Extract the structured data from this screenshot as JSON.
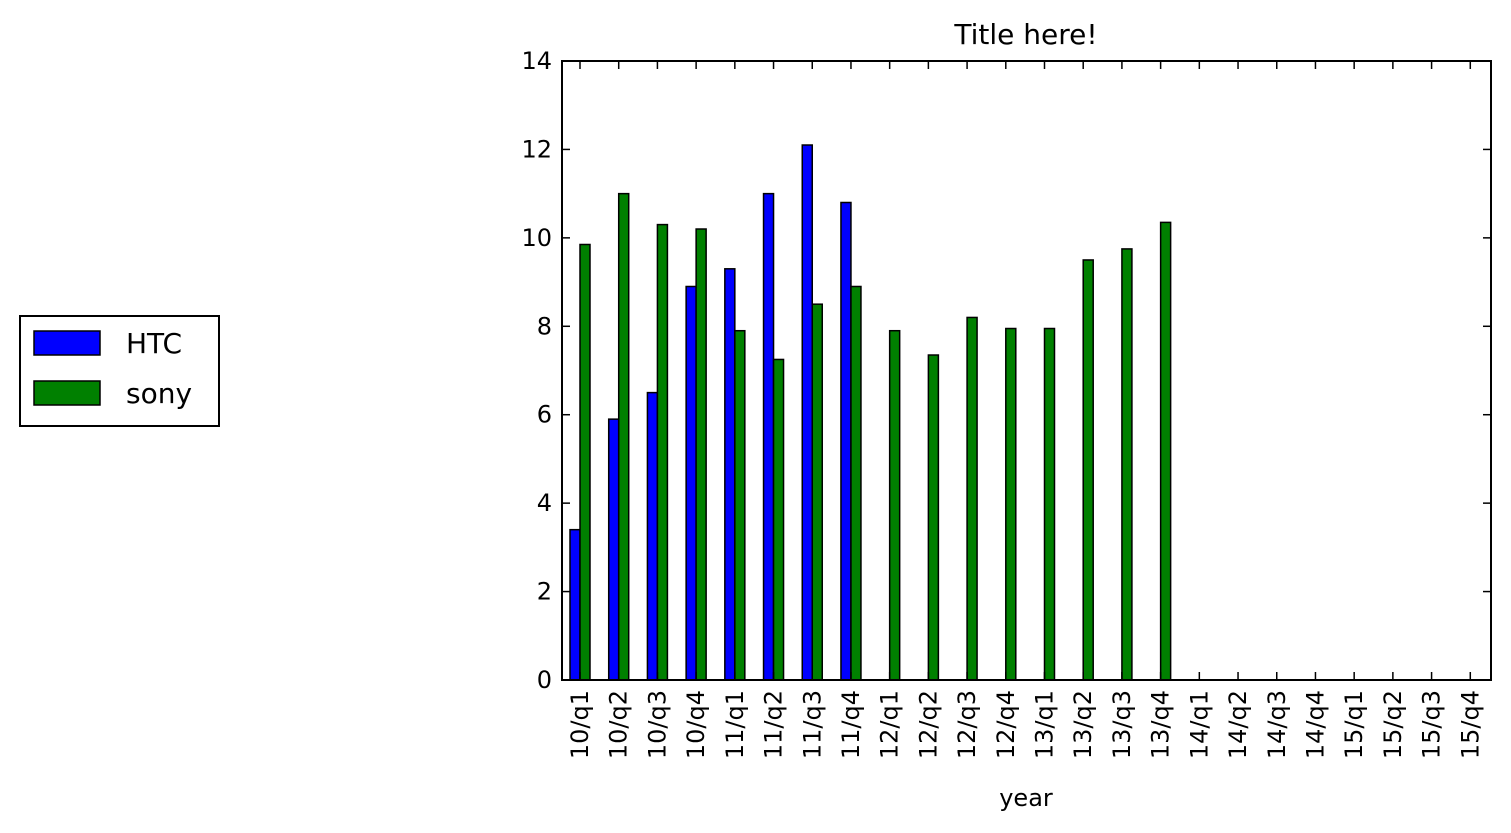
{
  "chart_data": {
    "type": "bar",
    "title": "Title here!",
    "xlabel": "year",
    "ylabel": "",
    "ylim": [
      0,
      14
    ],
    "yticks": [
      0,
      2,
      4,
      6,
      8,
      10,
      12,
      14
    ],
    "categories": [
      "10/q1",
      "10/q2",
      "10/q3",
      "10/q4",
      "11/q1",
      "11/q2",
      "11/q3",
      "11/q4",
      "12/q1",
      "12/q2",
      "12/q3",
      "12/q4",
      "13/q1",
      "13/q2",
      "13/q3",
      "13/q4",
      "14/q1",
      "14/q2",
      "14/q3",
      "14/q4",
      "15/q1",
      "15/q2",
      "15/q3",
      "15/q4"
    ],
    "series": [
      {
        "name": "HTC",
        "color": "#0000ff",
        "values": [
          3.4,
          5.9,
          6.5,
          8.9,
          9.3,
          11.0,
          12.1,
          10.8,
          null,
          null,
          null,
          null,
          null,
          null,
          null,
          null,
          null,
          null,
          null,
          null,
          null,
          null,
          null,
          null
        ]
      },
      {
        "name": "sony",
        "color": "#008000",
        "values": [
          9.85,
          11.0,
          10.3,
          10.2,
          7.9,
          7.25,
          8.5,
          8.9,
          7.9,
          7.35,
          8.2,
          7.95,
          7.95,
          9.5,
          9.75,
          10.35,
          null,
          null,
          null,
          null,
          null,
          null,
          null,
          null
        ]
      }
    ],
    "grid": false,
    "legend_position": "outside-left"
  }
}
